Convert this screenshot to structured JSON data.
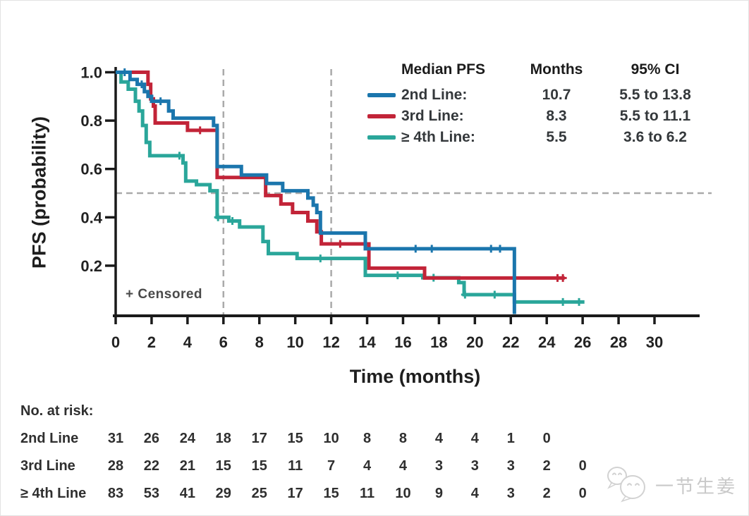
{
  "chart_data": {
    "type": "line",
    "subtype": "kaplan-meier-step",
    "title": "",
    "xlabel": "Time (months)",
    "ylabel": "PFS (probability)",
    "xlim": [
      0,
      30
    ],
    "ylim": [
      0,
      1.0
    ],
    "xticks": [
      0,
      2,
      4,
      6,
      8,
      10,
      12,
      14,
      16,
      18,
      20,
      22,
      24,
      26,
      28,
      30
    ],
    "yticks": [
      1.0,
      0.8,
      0.6,
      0.4,
      0.2
    ],
    "ytick_labels": [
      "1.0",
      "0.8",
      "0.6",
      "0.4",
      "0.2"
    ],
    "grid": false,
    "annotation": "+ Censored",
    "reference_lines": {
      "y": 0.5,
      "x": [
        6,
        12
      ],
      "color": "#aaaaaa",
      "style": "dashed"
    },
    "legend": {
      "position": "top-right",
      "header": [
        "Median PFS",
        "Months",
        "95% CI"
      ],
      "rows": [
        {
          "label": "2nd Line:",
          "months": "10.7",
          "ci": "5.5 to 13.8",
          "color": "#1b76ad"
        },
        {
          "label": "3rd Line:",
          "months": "8.3",
          "ci": "5.5 to 11.1",
          "color": "#c22438"
        },
        {
          "label": "≥ 4th Line:",
          "months": "5.5",
          "ci": "3.6 to 6.2",
          "color": "#2aa69a"
        }
      ]
    },
    "series": [
      {
        "name": "2nd Line",
        "color": "#1b76ad",
        "points": [
          [
            0,
            1.0
          ],
          [
            0.8,
            0.97
          ],
          [
            1.2,
            0.95
          ],
          [
            1.6,
            0.92
          ],
          [
            1.8,
            0.9
          ],
          [
            2.0,
            0.88
          ],
          [
            2.95,
            0.84
          ],
          [
            3.2,
            0.81
          ],
          [
            5.45,
            0.78
          ],
          [
            5.65,
            0.61
          ],
          [
            7.0,
            0.575
          ],
          [
            8.4,
            0.54
          ],
          [
            9.3,
            0.51
          ],
          [
            10.7,
            0.48
          ],
          [
            11.0,
            0.45
          ],
          [
            11.2,
            0.42
          ],
          [
            11.4,
            0.335
          ],
          [
            13.9,
            0.27
          ],
          [
            22.2,
            0
          ]
        ],
        "end_t": null,
        "censor_times": [
          0.5,
          1.45,
          2.5,
          16.7,
          17.6,
          20.9,
          21.4
        ]
      },
      {
        "name": "3rd Line",
        "color": "#c22438",
        "points": [
          [
            0,
            1.0
          ],
          [
            1.8,
            0.95
          ],
          [
            1.95,
            0.89
          ],
          [
            2.1,
            0.86
          ],
          [
            2.2,
            0.79
          ],
          [
            4.0,
            0.76
          ],
          [
            5.65,
            0.565
          ],
          [
            8.35,
            0.49
          ],
          [
            9.2,
            0.455
          ],
          [
            9.85,
            0.42
          ],
          [
            10.7,
            0.385
          ],
          [
            11.2,
            0.34
          ],
          [
            11.45,
            0.29
          ],
          [
            14.1,
            0.19
          ],
          [
            17.2,
            0.149
          ]
        ],
        "end_t": 25.0,
        "censor_times": [
          4.7,
          12.5,
          24.6,
          24.9
        ]
      },
      {
        "name": "≥ 4th Line",
        "color": "#2aa69a",
        "points": [
          [
            0,
            1.0
          ],
          [
            0.3,
            0.96
          ],
          [
            0.7,
            0.93
          ],
          [
            1.1,
            0.88
          ],
          [
            1.3,
            0.84
          ],
          [
            1.5,
            0.78
          ],
          [
            1.7,
            0.71
          ],
          [
            1.9,
            0.655
          ],
          [
            3.75,
            0.625
          ],
          [
            3.9,
            0.55
          ],
          [
            4.5,
            0.535
          ],
          [
            5.25,
            0.51
          ],
          [
            5.65,
            0.4
          ],
          [
            6.3,
            0.385
          ],
          [
            6.9,
            0.36
          ],
          [
            8.2,
            0.3
          ],
          [
            8.5,
            0.25
          ],
          [
            10.1,
            0.23
          ],
          [
            13.9,
            0.16
          ],
          [
            17.1,
            0.15
          ],
          [
            19.1,
            0.13
          ],
          [
            19.4,
            0.08
          ],
          [
            22.2,
            0.05
          ]
        ],
        "end_t": 26.1,
        "censor_times": [
          3.55,
          5.7,
          6.5,
          11.4,
          15.7,
          17.7,
          19.45,
          21.1,
          24.9,
          25.8
        ]
      }
    ]
  },
  "risk_table": {
    "title": "No. at risk:",
    "times": [
      0,
      2,
      4,
      6,
      8,
      10,
      12,
      14,
      16,
      18,
      20,
      22,
      24,
      26
    ],
    "rows": [
      {
        "label": "2nd Line",
        "values": [
          31,
          26,
          24,
          18,
          17,
          15,
          10,
          8,
          8,
          4,
          4,
          1,
          0
        ]
      },
      {
        "label": "3rd Line",
        "values": [
          28,
          22,
          21,
          15,
          15,
          11,
          7,
          4,
          4,
          3,
          3,
          3,
          2,
          0
        ]
      },
      {
        "label": "≥ 4th Line",
        "values": [
          83,
          53,
          41,
          29,
          25,
          17,
          15,
          11,
          10,
          9,
          4,
          3,
          2,
          0
        ]
      }
    ]
  },
  "watermark": {
    "text": "一节生姜",
    "icon": "chat-faces-icon"
  }
}
